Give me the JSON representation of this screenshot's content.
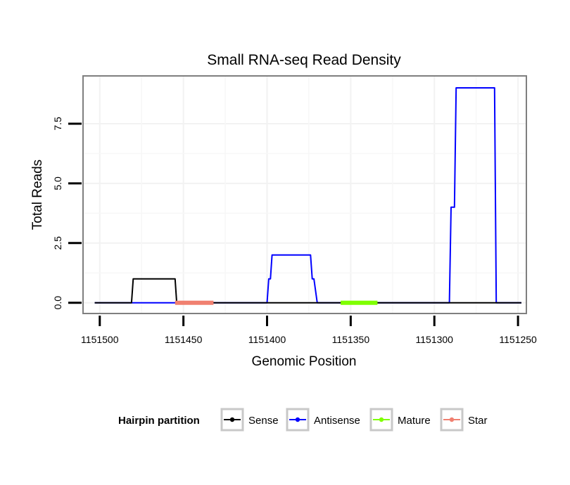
{
  "chart_data": {
    "type": "line",
    "title": "Small RNA-seq Read Density",
    "xlabel": "Genomic Position",
    "ylabel": "Total Reads",
    "x_reversed": true,
    "xlim": [
      1151510,
      1151245
    ],
    "ylim": [
      -0.45,
      9.5
    ],
    "x_ticks": [
      {
        "value": 1151500,
        "label": "1151500"
      },
      {
        "value": 1151450,
        "label": "1151450"
      },
      {
        "value": 1151400,
        "label": "1151400"
      },
      {
        "value": 1151350,
        "label": "1151350"
      },
      {
        "value": 1151300,
        "label": "1151300"
      },
      {
        "value": 1151250,
        "label": "1151250"
      }
    ],
    "y_ticks": [
      {
        "value": 0,
        "label": "0.0"
      },
      {
        "value": 2.5,
        "label": "2.5"
      },
      {
        "value": 5,
        "label": "5.0"
      },
      {
        "value": 7.5,
        "label": "7.5"
      }
    ],
    "grid": true,
    "legend": {
      "title": "Hairpin partition",
      "position": "bottom",
      "entries": [
        {
          "name": "Sense",
          "color": "#000000"
        },
        {
          "name": "Antisense",
          "color": "#0000FF"
        },
        {
          "name": "Mature",
          "color": "#7FFF00"
        },
        {
          "name": "Star",
          "color": "#F08070"
        }
      ]
    },
    "series": [
      {
        "name": "Antisense",
        "color": "#0000FF",
        "width": 2,
        "x": [
          1151503,
          1151400,
          1151399,
          1151398,
          1151397,
          1151374,
          1151373,
          1151372,
          1151370,
          1151291,
          1151290,
          1151288,
          1151287,
          1151264,
          1151263,
          1151248
        ],
        "y": [
          0,
          0,
          1,
          1,
          2,
          2,
          1,
          1,
          0,
          0,
          4,
          4,
          9,
          9,
          0,
          0
        ]
      },
      {
        "name": "Sense",
        "color": "#000000",
        "width": 2,
        "x": [
          1151503,
          1151481,
          1151480,
          1151455,
          1151454,
          1151248
        ],
        "y": [
          0,
          0,
          1,
          1,
          0,
          0
        ]
      },
      {
        "name": "Star",
        "color": "#F08070",
        "width": 6,
        "x": [
          1151455,
          1151432
        ],
        "y": [
          0,
          0
        ]
      },
      {
        "name": "Mature",
        "color": "#7FFF00",
        "width": 6,
        "x": [
          1151356,
          1151334
        ],
        "y": [
          0,
          0
        ]
      }
    ]
  }
}
